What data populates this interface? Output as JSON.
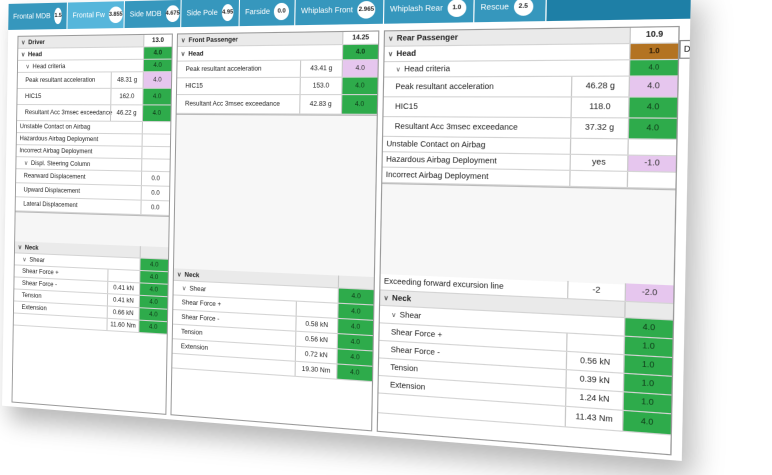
{
  "tabs": [
    {
      "label": "Frontal MDB",
      "score": "1.5",
      "active": false
    },
    {
      "label": "Frontal Fw",
      "score": "3.855",
      "active": true
    },
    {
      "label": "Side MDB",
      "score": "4.675",
      "active": false
    },
    {
      "label": "Side Pole",
      "score": "4.95",
      "active": false
    },
    {
      "label": "Farside",
      "score": "0.0",
      "active": false
    },
    {
      "label": "Whiplash Front",
      "score": "2.965",
      "active": false
    },
    {
      "label": "Whiplash Rear",
      "score": "1.0",
      "active": false
    },
    {
      "label": "Rescue",
      "score": "2.5",
      "active": false
    }
  ],
  "colors": {
    "tab_bg": "#3697bd",
    "tab_active": "#56b6db",
    "green": "#2eab4b",
    "pink": "#e6c6ee",
    "brown": "#b37322"
  },
  "driver": {
    "title": "Driver",
    "total": "13.0",
    "head": {
      "title": "Head",
      "score": "4.0"
    },
    "head_criteria": {
      "title": "Head criteria",
      "score": "4.0"
    },
    "rows": [
      {
        "label": "Peak resultant acceleration",
        "value": "48.31 g",
        "score": "4.0",
        "color": "pink"
      },
      {
        "label": "HIC15",
        "value": "162.0",
        "score": "4.0",
        "color": "green"
      },
      {
        "label": "Resultant Acc 3msec exceedance",
        "value": "46.22 g",
        "score": "4.0",
        "color": "green"
      },
      {
        "label": "Unstable Contact on Airbag",
        "value": "",
        "score": "",
        "color": "white"
      },
      {
        "label": "Hazardous Airbag Deployment",
        "value": "",
        "score": "",
        "color": "white"
      },
      {
        "label": "Incorrect Airbag Deployment",
        "value": "",
        "score": "",
        "color": "white"
      }
    ],
    "steering": {
      "title": "Displ. Steering Column"
    },
    "steering_rows": [
      {
        "label": "Rearward Displacement",
        "score": "0.0"
      },
      {
        "label": "Upward Displacement",
        "score": "0.0"
      },
      {
        "label": "Lateral Displacement",
        "score": "0.0"
      }
    ],
    "neck": {
      "title": "Neck",
      "score": "4.0"
    },
    "shear": {
      "title": "Shear",
      "score": "4.0"
    },
    "neck_rows": [
      {
        "label": "Shear Force +",
        "value": "",
        "score": "4.0"
      },
      {
        "label": "Shear Force -",
        "value": "0.41 kN",
        "score": "4.0"
      },
      {
        "label": "Tension",
        "value": "0.41 kN",
        "score": "4.0"
      },
      {
        "label": "Extension",
        "value": "0.66 kN",
        "score": "4.0"
      },
      {
        "label": "",
        "value": "11.60 Nm",
        "score": "4.0"
      }
    ]
  },
  "front": {
    "title": "Front Passenger",
    "total": "14.25",
    "head": {
      "title": "Head",
      "score": "4.0"
    },
    "rows": [
      {
        "label": "Peak resultant acceleration",
        "value": "43.41 g",
        "score": "4.0",
        "color": "pink"
      },
      {
        "label": "HIC15",
        "value": "153.0",
        "score": "4.0",
        "color": "green"
      },
      {
        "label": "Resultant Acc 3msec exceedance",
        "value": "42.83 g",
        "score": "4.0",
        "color": "green"
      }
    ],
    "neck": {
      "title": "Neck",
      "score": "4.0"
    },
    "shear": {
      "title": "Shear",
      "score": "4.0"
    },
    "neck_rows": [
      {
        "label": "Shear Force +",
        "value": "",
        "score": "4.0"
      },
      {
        "label": "Shear Force -",
        "value": "0.58 kN",
        "score": "4.0"
      },
      {
        "label": "Tension",
        "value": "0.56 kN",
        "score": "4.0"
      },
      {
        "label": "Extension",
        "value": "0.72 kN",
        "score": "4.0"
      },
      {
        "label": "",
        "value": "19.30 Nm",
        "score": "4.0"
      }
    ]
  },
  "rear": {
    "title": "Rear Passenger",
    "total": "10.9",
    "head": {
      "title": "Head",
      "score": "1.0"
    },
    "head_criteria": {
      "title": "Head criteria",
      "score": "4.0"
    },
    "rows": [
      {
        "label": "Peak resultant acceleration",
        "value": "46.28 g",
        "score": "4.0",
        "color": "pink"
      },
      {
        "label": "HIC15",
        "value": "118.0",
        "score": "4.0",
        "color": "green"
      },
      {
        "label": "Resultant Acc 3msec exceedance",
        "value": "37.32 g",
        "score": "4.0",
        "color": "green"
      },
      {
        "label": "Unstable Contact on Airbag",
        "value": "",
        "score": "",
        "color": "white"
      },
      {
        "label": "Hazardous Airbag Deployment",
        "value": "yes",
        "score": "-1.0",
        "color": "pink"
      },
      {
        "label": "Incorrect Airbag Deployment",
        "value": "",
        "score": "",
        "color": "white"
      }
    ],
    "excursion": {
      "label": "Exceeding forward excursion line",
      "value": "-2",
      "score": "-2.0"
    },
    "neck": {
      "title": "Neck",
      "score": "4.0"
    },
    "shear": {
      "title": "Shear",
      "score": "1.0"
    },
    "neck_rows": [
      {
        "label": "Shear Force +",
        "value": "",
        "score": "1.0"
      },
      {
        "label": "Shear Force -",
        "value": "0.56 kN",
        "score": "1.0"
      },
      {
        "label": "Tension",
        "value": "0.39 kN",
        "score": "1.0"
      },
      {
        "label": "Extension",
        "value": "1.24 kN",
        "score": "1.0"
      },
      {
        "label": "",
        "value": "11.43 Nm",
        "score": "4.0"
      }
    ],
    "corner_button": "D"
  }
}
